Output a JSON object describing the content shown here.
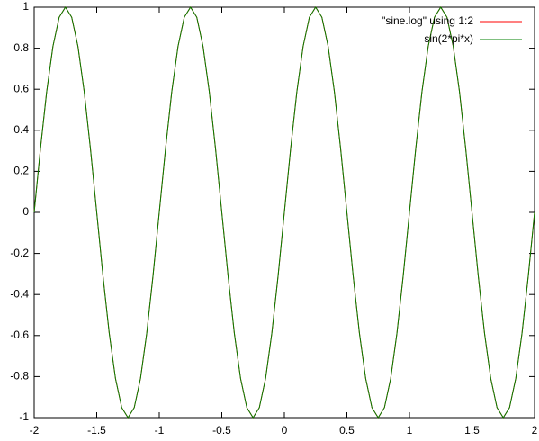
{
  "chart_data": {
    "type": "line",
    "x": [
      -2,
      -1.95,
      -1.9,
      -1.85,
      -1.8,
      -1.75,
      -1.7,
      -1.65,
      -1.6,
      -1.55,
      -1.5,
      -1.45,
      -1.4,
      -1.35,
      -1.3,
      -1.25,
      -1.2,
      -1.15,
      -1.1,
      -1.05,
      -1,
      -0.95,
      -0.9,
      -0.85,
      -0.8,
      -0.75,
      -0.7,
      -0.65,
      -0.6,
      -0.55,
      -0.5,
      -0.45,
      -0.4,
      -0.35,
      -0.3,
      -0.25,
      -0.2,
      -0.15,
      -0.1,
      -0.05,
      0,
      0.05,
      0.1,
      0.15,
      0.2,
      0.25,
      0.3,
      0.35,
      0.4,
      0.45,
      0.5,
      0.55,
      0.6,
      0.65,
      0.7,
      0.75,
      0.8,
      0.85,
      0.9,
      0.95,
      1,
      1.05,
      1.1,
      1.15,
      1.2,
      1.25,
      1.3,
      1.35,
      1.4,
      1.45,
      1.5,
      1.55,
      1.6,
      1.65,
      1.7,
      1.75,
      1.8,
      1.85,
      1.9,
      1.95,
      2
    ],
    "series": [
      {
        "name": "\"sine.log\" using 1:2",
        "color": "#ff0000",
        "values": [
          0,
          0.309,
          0.588,
          0.809,
          0.951,
          1,
          0.951,
          0.809,
          0.588,
          0.309,
          0,
          -0.309,
          -0.588,
          -0.809,
          -0.951,
          -1,
          -0.951,
          -0.809,
          -0.588,
          -0.309,
          0,
          0.309,
          0.588,
          0.809,
          0.951,
          1,
          0.951,
          0.809,
          0.588,
          0.309,
          0,
          -0.309,
          -0.588,
          -0.809,
          -0.951,
          -1,
          -0.951,
          -0.809,
          -0.588,
          -0.309,
          0,
          0.309,
          0.588,
          0.809,
          0.951,
          1,
          0.951,
          0.809,
          0.588,
          0.309,
          0,
          -0.309,
          -0.588,
          -0.809,
          -0.951,
          -1,
          -0.951,
          -0.809,
          -0.588,
          -0.309,
          0,
          0.309,
          0.588,
          0.809,
          0.951,
          1,
          0.951,
          0.809,
          0.588,
          0.309,
          0,
          -0.309,
          -0.588,
          -0.809,
          -0.951,
          -1,
          -0.951,
          -0.809,
          -0.588,
          -0.309,
          0
        ]
      },
      {
        "name": "sin(2*pi*x)",
        "color": "#008000",
        "values": [
          0,
          0.309,
          0.588,
          0.809,
          0.951,
          1,
          0.951,
          0.809,
          0.588,
          0.309,
          0,
          -0.309,
          -0.588,
          -0.809,
          -0.951,
          -1,
          -0.951,
          -0.809,
          -0.588,
          -0.309,
          0,
          0.309,
          0.588,
          0.809,
          0.951,
          1,
          0.951,
          0.809,
          0.588,
          0.309,
          0,
          -0.309,
          -0.588,
          -0.809,
          -0.951,
          -1,
          -0.951,
          -0.809,
          -0.588,
          -0.309,
          0,
          0.309,
          0.588,
          0.809,
          0.951,
          1,
          0.951,
          0.809,
          0.588,
          0.309,
          0,
          -0.309,
          -0.588,
          -0.809,
          -0.951,
          -1,
          -0.951,
          -0.809,
          -0.588,
          -0.309,
          0,
          0.309,
          0.588,
          0.809,
          0.951,
          1,
          0.951,
          0.809,
          0.588,
          0.309,
          0,
          -0.309,
          -0.588,
          -0.809,
          -0.951,
          -1,
          -0.951,
          -0.809,
          -0.588,
          -0.309,
          0
        ]
      }
    ],
    "xlim": [
      -2,
      2
    ],
    "xticks": [
      -2,
      -1.5,
      -1,
      -0.5,
      0,
      0.5,
      1,
      1.5,
      2
    ],
    "ylim": [
      -1,
      1
    ],
    "yticks": [
      -1,
      -0.8,
      -0.6,
      -0.4,
      -0.2,
      0,
      0.2,
      0.4,
      0.6,
      0.8,
      1
    ],
    "grid": false,
    "legend": "top-right"
  }
}
